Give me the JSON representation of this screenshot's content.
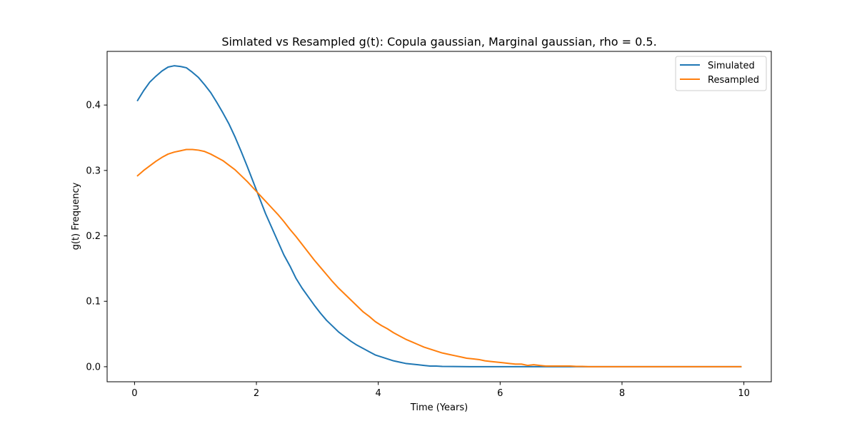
{
  "chart_data": {
    "type": "line",
    "title": "Simlated vs Resampled g(t): Copula gaussian, Marginal gaussian, rho =  0.5.",
    "xlabel": "Time (Years)",
    "ylabel": "g(t) Frequency",
    "xlim": [
      -0.45,
      10.45
    ],
    "ylim": [
      -0.023,
      0.482
    ],
    "xticks": [
      0,
      2,
      4,
      6,
      8,
      10
    ],
    "xtick_labels": [
      "0",
      "2",
      "4",
      "6",
      "8",
      "10"
    ],
    "yticks": [
      0.0,
      0.1,
      0.2,
      0.3,
      0.4
    ],
    "ytick_labels": [
      "0.0",
      "0.1",
      "0.2",
      "0.3",
      "0.4"
    ],
    "grid": false,
    "legend_position": "top-right",
    "colors": {
      "simulated": "#1f77b4",
      "resampled": "#ff7f0e",
      "axes": "#000000",
      "background": "#ffffff"
    },
    "series": [
      {
        "name": "Simulated",
        "color": "#1f77b4",
        "x": [
          0.05,
          0.15,
          0.25,
          0.35,
          0.45,
          0.55,
          0.65,
          0.75,
          0.85,
          0.95,
          1.05,
          1.15,
          1.25,
          1.35,
          1.45,
          1.55,
          1.65,
          1.75,
          1.85,
          1.95,
          2.05,
          2.15,
          2.25,
          2.35,
          2.45,
          2.55,
          2.65,
          2.75,
          2.85,
          2.95,
          3.05,
          3.15,
          3.25,
          3.35,
          3.45,
          3.55,
          3.65,
          3.75,
          3.85,
          3.95,
          4.05,
          4.15,
          4.25,
          4.35,
          4.45,
          4.55,
          4.65,
          4.75,
          4.85,
          4.95,
          5.05,
          5.5,
          6.0,
          6.5,
          7.0,
          7.5,
          8.0,
          8.5,
          9.0,
          9.5,
          9.95
        ],
        "y": [
          0.407,
          0.422,
          0.435,
          0.444,
          0.452,
          0.458,
          0.46,
          0.459,
          0.457,
          0.45,
          0.442,
          0.431,
          0.419,
          0.404,
          0.388,
          0.371,
          0.351,
          0.329,
          0.306,
          0.282,
          0.258,
          0.234,
          0.213,
          0.192,
          0.171,
          0.154,
          0.135,
          0.12,
          0.107,
          0.094,
          0.082,
          0.071,
          0.062,
          0.053,
          0.046,
          0.039,
          0.033,
          0.028,
          0.023,
          0.018,
          0.015,
          0.012,
          0.009,
          0.007,
          0.005,
          0.004,
          0.003,
          0.002,
          0.001,
          0.001,
          0.0005,
          0.0,
          0.0,
          0.0,
          0.0,
          0.0,
          0.0,
          0.0,
          0.0,
          0.0,
          0.0
        ]
      },
      {
        "name": "Resampled",
        "color": "#ff7f0e",
        "x": [
          0.05,
          0.15,
          0.25,
          0.35,
          0.45,
          0.55,
          0.65,
          0.75,
          0.85,
          0.95,
          1.05,
          1.15,
          1.25,
          1.35,
          1.45,
          1.55,
          1.65,
          1.75,
          1.85,
          1.95,
          2.05,
          2.15,
          2.25,
          2.35,
          2.45,
          2.55,
          2.65,
          2.75,
          2.85,
          2.95,
          3.05,
          3.15,
          3.25,
          3.35,
          3.45,
          3.55,
          3.65,
          3.75,
          3.85,
          3.95,
          4.05,
          4.15,
          4.25,
          4.35,
          4.45,
          4.55,
          4.65,
          4.75,
          4.85,
          4.95,
          5.05,
          5.15,
          5.25,
          5.35,
          5.45,
          5.55,
          5.65,
          5.75,
          5.85,
          5.95,
          6.05,
          6.15,
          6.25,
          6.35,
          6.45,
          6.55,
          6.65,
          6.75,
          6.85,
          6.95,
          7.05,
          7.15,
          7.25,
          7.35,
          7.45,
          7.6,
          8.0,
          8.5,
          9.0,
          9.5,
          9.95
        ],
        "y": [
          0.292,
          0.3,
          0.307,
          0.314,
          0.32,
          0.325,
          0.328,
          0.33,
          0.332,
          0.332,
          0.331,
          0.329,
          0.325,
          0.32,
          0.315,
          0.308,
          0.301,
          0.292,
          0.283,
          0.273,
          0.263,
          0.253,
          0.243,
          0.233,
          0.222,
          0.21,
          0.199,
          0.187,
          0.175,
          0.163,
          0.152,
          0.141,
          0.13,
          0.12,
          0.111,
          0.102,
          0.093,
          0.084,
          0.077,
          0.069,
          0.063,
          0.058,
          0.052,
          0.047,
          0.042,
          0.038,
          0.034,
          0.03,
          0.027,
          0.024,
          0.021,
          0.019,
          0.017,
          0.015,
          0.013,
          0.012,
          0.011,
          0.009,
          0.008,
          0.007,
          0.006,
          0.005,
          0.004,
          0.004,
          0.002,
          0.003,
          0.002,
          0.001,
          0.001,
          0.001,
          0.001,
          0.001,
          0.0005,
          0.0005,
          0.0,
          0.0,
          0.0,
          0.0,
          0.0,
          0.0,
          0.0
        ]
      }
    ]
  }
}
